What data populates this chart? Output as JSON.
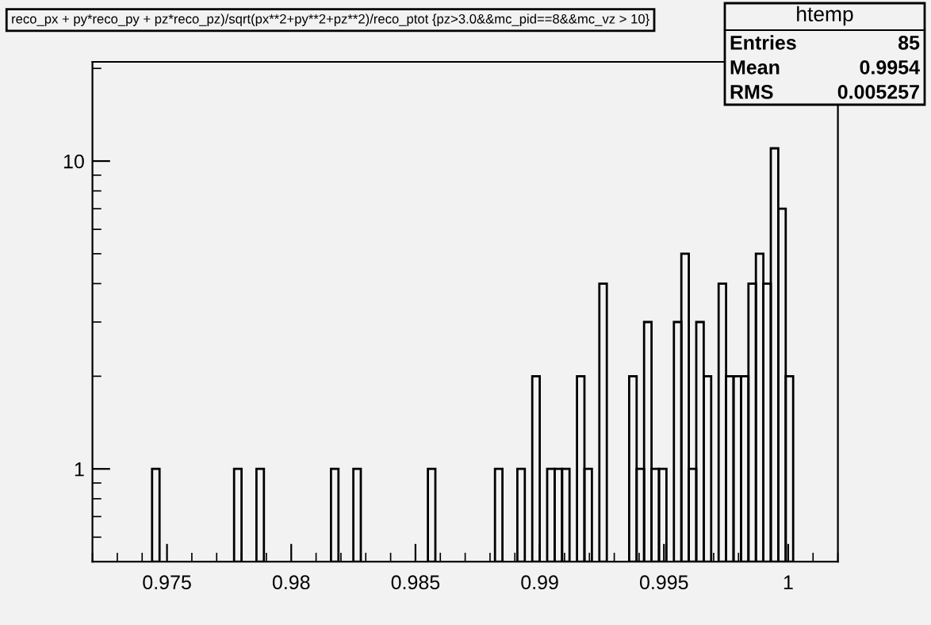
{
  "chart_data": {
    "type": "histogram",
    "title": "reco_px + py*reco_py + pz*reco_pz)/sqrt(px**2+py**2+pz**2)/reco_ptot {pz>3.0&&mc_pid==8&&mc_vz > 10}",
    "annotations": [
      "htemp",
      "Entries",
      "85",
      "Mean",
      "0.9954",
      "RMS",
      "0.005257"
    ],
    "bins": [
      0.972,
      0.9723,
      0.9726,
      0.9729,
      0.9732,
      0.9735,
      0.9738,
      0.9741,
      0.9744,
      0.9747,
      0.975,
      0.9753,
      0.9756,
      0.9759,
      0.9762,
      0.9765,
      0.9768,
      0.9771,
      0.9774,
      0.9777,
      0.978,
      0.9783,
      0.9786,
      0.9789,
      0.9792,
      0.9795,
      0.9798,
      0.9801,
      0.9804,
      0.9807,
      0.981,
      0.9813,
      0.9816,
      0.9819,
      0.9822,
      0.9825,
      0.9828,
      0.9831,
      0.9834,
      0.9837,
      0.984,
      0.9843,
      0.9846,
      0.9849,
      0.9852,
      0.9855,
      0.9858,
      0.9861,
      0.9864,
      0.9867,
      0.987,
      0.9873,
      0.9876,
      0.9879,
      0.9882,
      0.9885,
      0.9888,
      0.9891,
      0.9894,
      0.9897,
      0.99,
      0.9903,
      0.9906,
      0.9909,
      0.9912,
      0.9915,
      0.9918,
      0.9921,
      0.9924,
      0.9927,
      0.993,
      0.9933,
      0.9936,
      0.9939,
      0.9942,
      0.9945,
      0.9948,
      0.9951,
      0.9954,
      0.9957,
      0.996,
      0.9963,
      0.9966,
      0.9969,
      0.9972,
      0.9975,
      0.9978,
      0.9981,
      0.9984,
      0.9987,
      0.999,
      0.9993,
      0.9996,
      0.9999,
      1.0002,
      1.0005,
      1.0008,
      1.0011,
      1.0014,
      1.0017,
      1.002
    ],
    "values": [
      null,
      null,
      null,
      null,
      null,
      null,
      null,
      null,
      1,
      null,
      null,
      null,
      null,
      null,
      null,
      null,
      null,
      null,
      null,
      1,
      null,
      null,
      1,
      null,
      null,
      null,
      null,
      null,
      null,
      null,
      null,
      null,
      1,
      null,
      null,
      1,
      null,
      null,
      null,
      null,
      null,
      null,
      null,
      null,
      null,
      1,
      null,
      null,
      null,
      null,
      null,
      null,
      null,
      null,
      1,
      null,
      null,
      1,
      null,
      2,
      null,
      1,
      1,
      1,
      null,
      2,
      1,
      null,
      4,
      null,
      null,
      null,
      2,
      1,
      3,
      1,
      1,
      null,
      3,
      5,
      1,
      3,
      2,
      null,
      4,
      2,
      2,
      2,
      4,
      5,
      4,
      11,
      7,
      2,
      null,
      null,
      null,
      null,
      null,
      null
    ],
    "color": "#000000",
    "log": "y",
    "xlim": [
      0.972,
      1.002
    ],
    "xticks": [
      {
        "value": 0.975,
        "label": "0.975"
      },
      {
        "value": 0.98,
        "label": "0.98"
      },
      {
        "value": 0.985,
        "label": "0.985"
      },
      {
        "value": 0.99,
        "label": "0.99"
      },
      {
        "value": 0.995,
        "label": "0.995"
      },
      {
        "value": 1,
        "label": "1"
      }
    ],
    "ylim": [
      0.5,
      21
    ],
    "yticks": [
      1,
      10
    ],
    "grid": false,
    "legend": false
  }
}
